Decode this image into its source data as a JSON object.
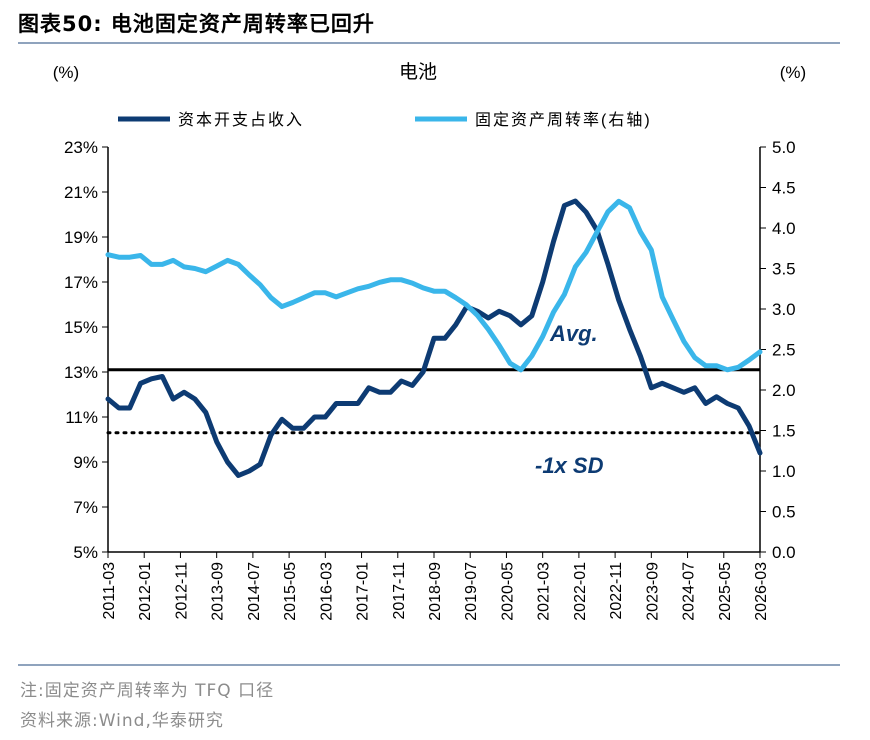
{
  "figure": {
    "title": "图表50:  电池固定资产周转率已回升",
    "note": "注:固定资产周转率为 TFQ 口径",
    "source": "资料来源:Wind,华泰研究"
  },
  "colors": {
    "capex_line": "#0d3b73",
    "turnover_line": "#3ab6ea",
    "rule": "#8fa3bd"
  },
  "chart_data": {
    "type": "line",
    "title": "电池",
    "left_axis_unit": "(%)",
    "right_axis_unit": "(%)",
    "ylim_left": [
      5,
      23
    ],
    "ylim_right": [
      0.0,
      5.0
    ],
    "left_ticks": [
      "23%",
      "21%",
      "19%",
      "17%",
      "15%",
      "13%",
      "11%",
      "9%",
      "7%",
      "5%"
    ],
    "right_ticks": [
      "5.0",
      "4.5",
      "4.0",
      "3.5",
      "3.0",
      "2.5",
      "2.0",
      "1.5",
      "1.0",
      "0.5",
      "0.0"
    ],
    "x_tick_labels": [
      "2011-03",
      "2012-01",
      "2012-11",
      "2013-09",
      "2014-07",
      "2015-05",
      "2016-03",
      "2017-01",
      "2017-11",
      "2018-09",
      "2019-07",
      "2020-05",
      "2021-03",
      "2022-01",
      "2022-11",
      "2023-09",
      "2024-07",
      "2025-05",
      "2026-03"
    ],
    "x_range": [
      "2011-03",
      "2026-03"
    ],
    "legend_position": "top",
    "series": [
      {
        "name": "资本开支占收入",
        "axis": "left",
        "points": [
          [
            "2011-03",
            11.8
          ],
          [
            "2011-06",
            11.4
          ],
          [
            "2011-09",
            11.4
          ],
          [
            "2011-12",
            12.5
          ],
          [
            "2012-03",
            12.7
          ],
          [
            "2012-06",
            12.8
          ],
          [
            "2012-09",
            11.8
          ],
          [
            "2012-12",
            12.1
          ],
          [
            "2013-03",
            11.8
          ],
          [
            "2013-06",
            11.2
          ],
          [
            "2013-09",
            9.9
          ],
          [
            "2013-12",
            9.0
          ],
          [
            "2014-03",
            8.4
          ],
          [
            "2014-06",
            8.6
          ],
          [
            "2014-09",
            8.9
          ],
          [
            "2014-12",
            10.2
          ],
          [
            "2015-03",
            10.9
          ],
          [
            "2015-06",
            10.5
          ],
          [
            "2015-09",
            10.5
          ],
          [
            "2015-12",
            11.0
          ],
          [
            "2016-03",
            11.0
          ],
          [
            "2016-06",
            11.6
          ],
          [
            "2016-09",
            11.6
          ],
          [
            "2016-12",
            11.6
          ],
          [
            "2017-03",
            12.3
          ],
          [
            "2017-06",
            12.1
          ],
          [
            "2017-09",
            12.1
          ],
          [
            "2017-12",
            12.6
          ],
          [
            "2018-03",
            12.4
          ],
          [
            "2018-06",
            13.0
          ],
          [
            "2018-09",
            14.5
          ],
          [
            "2018-12",
            14.5
          ],
          [
            "2019-03",
            15.1
          ],
          [
            "2019-06",
            15.9
          ],
          [
            "2019-09",
            15.7
          ],
          [
            "2019-12",
            15.4
          ],
          [
            "2020-03",
            15.7
          ],
          [
            "2020-06",
            15.5
          ],
          [
            "2020-09",
            15.1
          ],
          [
            "2020-12",
            15.5
          ],
          [
            "2021-03",
            17.0
          ],
          [
            "2021-06",
            18.8
          ],
          [
            "2021-09",
            20.4
          ],
          [
            "2021-12",
            20.6
          ],
          [
            "2022-03",
            20.1
          ],
          [
            "2022-06",
            19.3
          ],
          [
            "2022-09",
            17.8
          ],
          [
            "2022-12",
            16.2
          ],
          [
            "2023-03",
            14.9
          ],
          [
            "2023-06",
            13.7
          ],
          [
            "2023-09",
            12.3
          ],
          [
            "2023-12",
            12.5
          ],
          [
            "2024-03",
            12.3
          ],
          [
            "2024-06",
            12.1
          ],
          [
            "2024-09",
            12.3
          ],
          [
            "2024-12",
            11.6
          ],
          [
            "2025-03",
            11.9
          ],
          [
            "2025-06",
            11.6
          ],
          [
            "2025-09",
            11.4
          ],
          [
            "2025-12",
            10.6
          ],
          [
            "2026-03",
            9.4
          ]
        ]
      },
      {
        "name": "固定资产周转率(右轴)",
        "axis": "right",
        "points": [
          [
            "2011-03",
            3.67
          ],
          [
            "2011-06",
            3.64
          ],
          [
            "2011-09",
            3.64
          ],
          [
            "2011-12",
            3.66
          ],
          [
            "2012-03",
            3.55
          ],
          [
            "2012-06",
            3.55
          ],
          [
            "2012-09",
            3.6
          ],
          [
            "2012-12",
            3.52
          ],
          [
            "2013-03",
            3.5
          ],
          [
            "2013-06",
            3.46
          ],
          [
            "2013-09",
            3.53
          ],
          [
            "2013-12",
            3.6
          ],
          [
            "2014-03",
            3.55
          ],
          [
            "2014-06",
            3.42
          ],
          [
            "2014-09",
            3.3
          ],
          [
            "2014-12",
            3.14
          ],
          [
            "2015-03",
            3.03
          ],
          [
            "2015-06",
            3.08
          ],
          [
            "2015-09",
            3.14
          ],
          [
            "2015-12",
            3.2
          ],
          [
            "2016-03",
            3.2
          ],
          [
            "2016-06",
            3.15
          ],
          [
            "2016-09",
            3.2
          ],
          [
            "2016-12",
            3.25
          ],
          [
            "2017-03",
            3.28
          ],
          [
            "2017-06",
            3.33
          ],
          [
            "2017-09",
            3.36
          ],
          [
            "2017-12",
            3.36
          ],
          [
            "2018-03",
            3.32
          ],
          [
            "2018-06",
            3.26
          ],
          [
            "2018-09",
            3.22
          ],
          [
            "2018-12",
            3.22
          ],
          [
            "2019-03",
            3.14
          ],
          [
            "2019-06",
            3.05
          ],
          [
            "2019-09",
            2.92
          ],
          [
            "2019-12",
            2.75
          ],
          [
            "2020-03",
            2.55
          ],
          [
            "2020-06",
            2.33
          ],
          [
            "2020-09",
            2.25
          ],
          [
            "2020-12",
            2.42
          ],
          [
            "2021-03",
            2.66
          ],
          [
            "2021-06",
            2.96
          ],
          [
            "2021-09",
            3.18
          ],
          [
            "2021-12",
            3.52
          ],
          [
            "2022-03",
            3.7
          ],
          [
            "2022-06",
            3.95
          ],
          [
            "2022-09",
            4.2
          ],
          [
            "2022-12",
            4.33
          ],
          [
            "2023-03",
            4.25
          ],
          [
            "2023-06",
            3.95
          ],
          [
            "2023-09",
            3.73
          ],
          [
            "2023-12",
            3.15
          ],
          [
            "2024-03",
            2.87
          ],
          [
            "2024-06",
            2.6
          ],
          [
            "2024-09",
            2.4
          ],
          [
            "2024-12",
            2.3
          ],
          [
            "2025-03",
            2.3
          ],
          [
            "2025-06",
            2.25
          ],
          [
            "2025-09",
            2.28
          ],
          [
            "2025-12",
            2.37
          ],
          [
            "2026-03",
            2.47
          ]
        ]
      }
    ],
    "reference_lines": [
      {
        "label": "Avg.",
        "axis": "left",
        "value": 13.1,
        "style": "solid"
      },
      {
        "label": "-1x SD",
        "axis": "left",
        "value": 10.3,
        "style": "dotted"
      }
    ]
  }
}
